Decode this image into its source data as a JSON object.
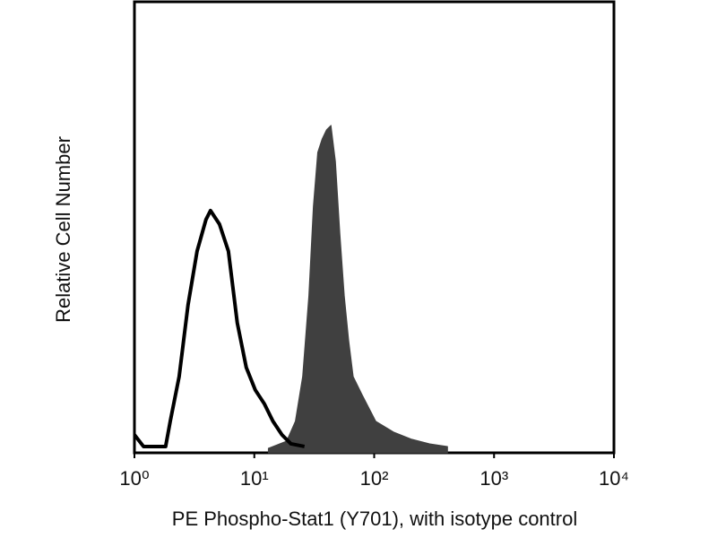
{
  "chart_data": {
    "type": "histogram-overlay",
    "xlabel": "PE Phospho-Stat1 (Y701), with isotype control",
    "ylabel": "Relative Cell Number",
    "log_x": true,
    "xlim": [
      1,
      10000
    ],
    "xticks": [
      {
        "value": 1,
        "label": "10⁰"
      },
      {
        "value": 10,
        "label": "10¹"
      },
      {
        "value": 100,
        "label": "10²"
      },
      {
        "value": 1000,
        "label": "10³"
      },
      {
        "value": 10000,
        "label": "10⁴"
      }
    ],
    "ylim": [
      0,
      100
    ],
    "series": [
      {
        "color": "#404040",
        "filled": true,
        "x": [
          13.1,
          18.6,
          22.0,
          25.3,
          28.5,
          31.1,
          33.8,
          36.8,
          40.0,
          43.6,
          47.5,
          51.7,
          56.3,
          61.3,
          66.8,
          79.2,
          103,
          145,
          206,
          290,
          409
        ],
        "values": [
          1.0,
          2.6,
          7.0,
          16.9,
          34.8,
          54.7,
          66.6,
          69.6,
          71.6,
          72.6,
          64.6,
          48.7,
          34.8,
          24.9,
          16.9,
          12.9,
          7.0,
          4.6,
          3.0,
          2.0,
          1.4
        ]
      },
      {
        "color": "#000000",
        "filled": false,
        "x": [
          1.0,
          1.19,
          1.82,
          1.99,
          2.36,
          2.8,
          3.33,
          3.95,
          4.31,
          5.12,
          6.08,
          7.21,
          8.57,
          10.2,
          12.1,
          14.3,
          17.0,
          20.2,
          26.2
        ],
        "values": [
          4.0,
          1.4,
          1.4,
          7.0,
          16.9,
          32.8,
          44.7,
          51.7,
          53.7,
          50.7,
          44.7,
          28.8,
          18.9,
          13.9,
          10.9,
          7.0,
          4.0,
          2.0,
          1.4
        ]
      }
    ]
  }
}
